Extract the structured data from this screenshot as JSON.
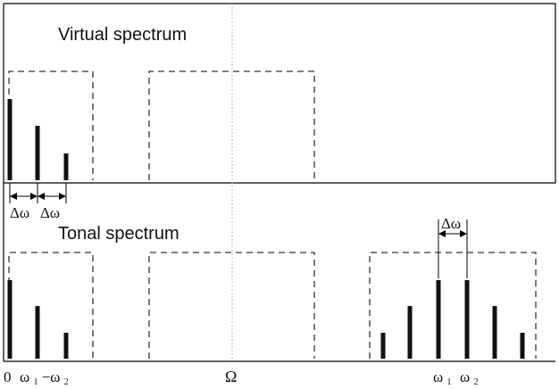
{
  "virtual_panel": {
    "title": "Virtual spectrum",
    "delta_label_1": "Δω",
    "delta_label_2": "Δω",
    "lines": [
      {
        "relative_height": 1.0
      },
      {
        "relative_height": 0.67
      },
      {
        "relative_height": 0.33
      }
    ]
  },
  "tonal_panel": {
    "title": "Tonal spectrum",
    "delta_label": "Δω",
    "baseband_lines": [
      {
        "relative_height": 1.0
      },
      {
        "relative_height": 0.67
      },
      {
        "relative_height": 0.33
      }
    ],
    "sideband_lines": [
      {
        "relative_height": 0.33
      },
      {
        "relative_height": 0.67
      },
      {
        "relative_height": 1.0
      },
      {
        "relative_height": 1.0
      },
      {
        "relative_height": 0.67
      },
      {
        "relative_height": 0.33
      }
    ]
  },
  "axis_labels": {
    "zero": "0",
    "omega1_minus_omega2_main": "ω",
    "omega1_minus_omega2_sub1": "1",
    "omega1_minus_omega2_mid": "−ω",
    "omega1_minus_omega2_sub2": "2",
    "center": "Ω",
    "omega1_main": "ω",
    "omega1_sub": "1",
    "omega2_main": "ω",
    "omega2_sub": "2"
  }
}
